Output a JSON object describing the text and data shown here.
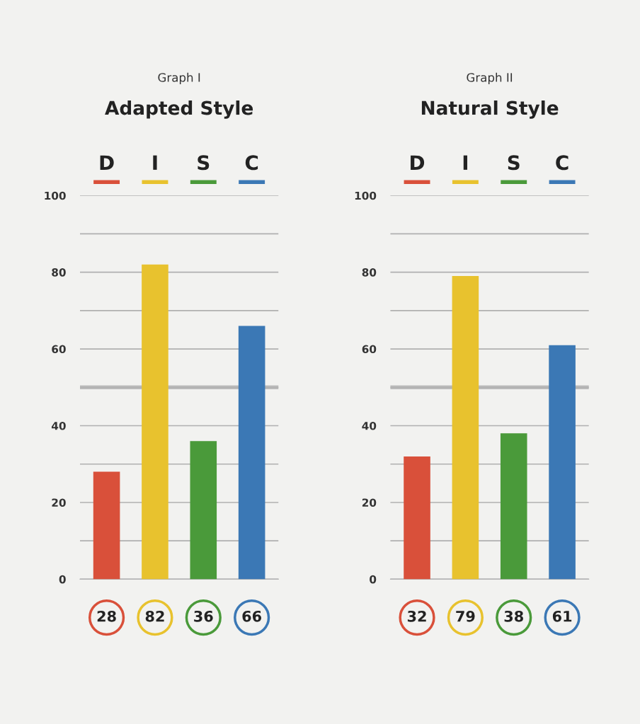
{
  "chart_data": [
    {
      "type": "bar",
      "subtitle": "Graph I",
      "title": "Adapted Style",
      "categories": [
        "D",
        "I",
        "S",
        "C"
      ],
      "values": [
        28,
        82,
        36,
        66
      ],
      "colors": [
        "#d9503a",
        "#e8c22e",
        "#4a9a3a",
        "#3b78b5"
      ],
      "data_labels": true,
      "ylim": [
        0,
        100
      ],
      "yticks": [
        0,
        {
          "value": 10,
          "label": null
        },
        20,
        {
          "value": 30,
          "label": null
        },
        40,
        {
          "value": 50,
          "label": null
        },
        60,
        {
          "value": 70,
          "label": null
        },
        80,
        {
          "value": 90,
          "label": null
        },
        100
      ],
      "grid": "y",
      "ref_lines": [
        {
          "axis": "y",
          "value": 50,
          "color": "#bdbdbd"
        }
      ]
    },
    {
      "type": "bar",
      "subtitle": "Graph II",
      "title": "Natural Style",
      "categories": [
        "D",
        "I",
        "S",
        "C"
      ],
      "values": [
        32,
        79,
        38,
        61
      ],
      "colors": [
        "#d9503a",
        "#e8c22e",
        "#4a9a3a",
        "#3b78b5"
      ],
      "data_labels": true,
      "ylim": [
        0,
        100
      ],
      "yticks": [
        0,
        {
          "value": 10,
          "label": null
        },
        20,
        {
          "value": 30,
          "label": null
        },
        40,
        {
          "value": 50,
          "label": null
        },
        60,
        {
          "value": 70,
          "label": null
        },
        80,
        {
          "value": 90,
          "label": null
        },
        100
      ],
      "grid": "y",
      "ref_lines": [
        {
          "axis": "y",
          "value": 50,
          "color": "#bdbdbd"
        }
      ]
    }
  ]
}
